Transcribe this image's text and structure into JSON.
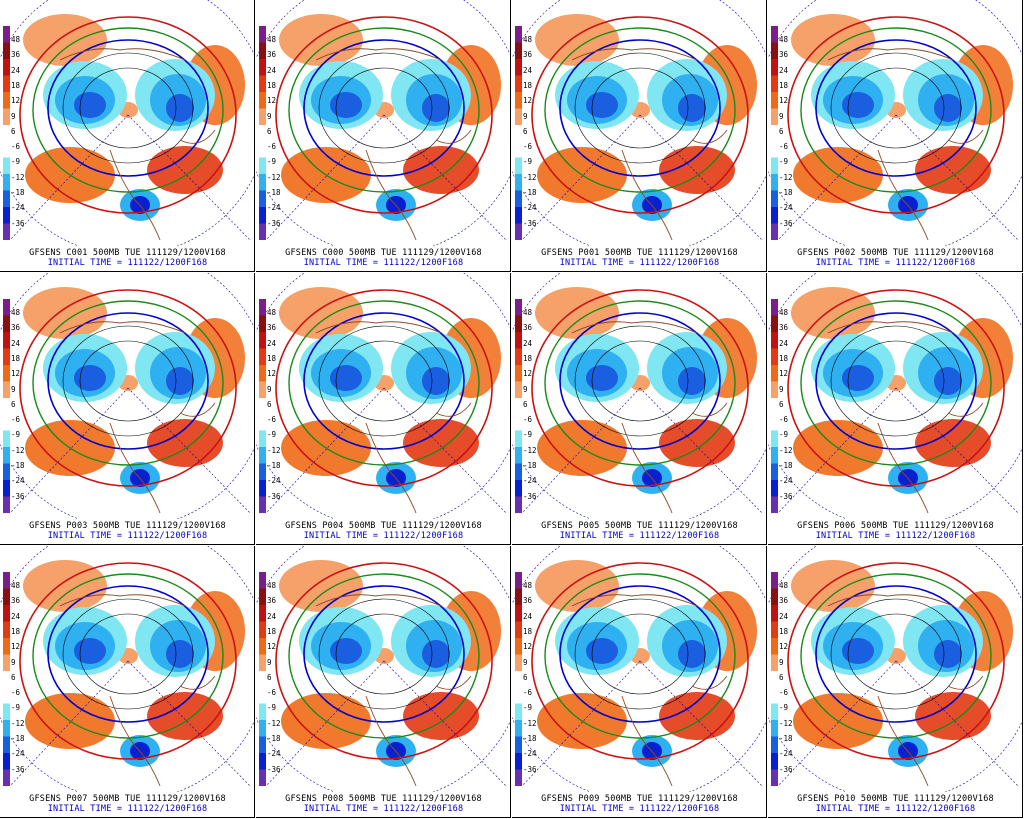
{
  "colorbar": {
    "ticks": [
      "48",
      "36",
      "24",
      "18",
      "12",
      "9",
      "6",
      "-6",
      "-9",
      "-12",
      "-18",
      "-24",
      "-36"
    ],
    "colors": [
      "#7a1e8a",
      "#8a0f0f",
      "#c31111",
      "#e23a13",
      "#f06a16",
      "#f6a06a",
      "#ffffff",
      "#ffffff",
      "#7fe6f2",
      "#2fb0f0",
      "#1a5fe0",
      "#0a1fd0",
      "#6a2fb0"
    ]
  },
  "panels": [
    {
      "title": "GFSENS C001 500MB TUE 111129/1200V168",
      "init": "INITIAL TIME = 111122/1200F168"
    },
    {
      "title": "GFSENS C000 500MB TUE 111129/1200V168",
      "init": "INITIAL TIME = 111122/1200F168"
    },
    {
      "title": "GFSENS P001 500MB TUE 111129/1200V168",
      "init": "INITIAL TIME = 111122/1200F168"
    },
    {
      "title": "GFSENS P002 500MB TUE 111129/1200V168",
      "init": "INITIAL TIME = 111122/1200F168"
    },
    {
      "title": "GFSENS P003 500MB TUE 111129/1200V168",
      "init": "INITIAL TIME = 111122/1200F168"
    },
    {
      "title": "GFSENS P004 500MB TUE 111129/1200V168",
      "init": "INITIAL TIME = 111122/1200F168"
    },
    {
      "title": "GFSENS P005 500MB TUE 111129/1200V168",
      "init": "INITIAL TIME = 111122/1200F168"
    },
    {
      "title": "GFSENS P006 500MB TUE 111129/1200V168",
      "init": "INITIAL TIME = 111122/1200F168"
    },
    {
      "title": "GFSENS P007 500MB TUE 111129/1200V168",
      "init": "INITIAL TIME = 111122/1200F168"
    },
    {
      "title": "GFSENS P008 500MB TUE 111129/1200V168",
      "init": "INITIAL TIME = 111122/1200F168"
    },
    {
      "title": "GFSENS P009 500MB TUE 111129/1200V168",
      "init": "INITIAL TIME = 111122/1200F168"
    },
    {
      "title": "GFSENS P010 500MB TUE 111129/1200V168",
      "init": "INITIAL TIME = 111122/1200F168"
    }
  ]
}
